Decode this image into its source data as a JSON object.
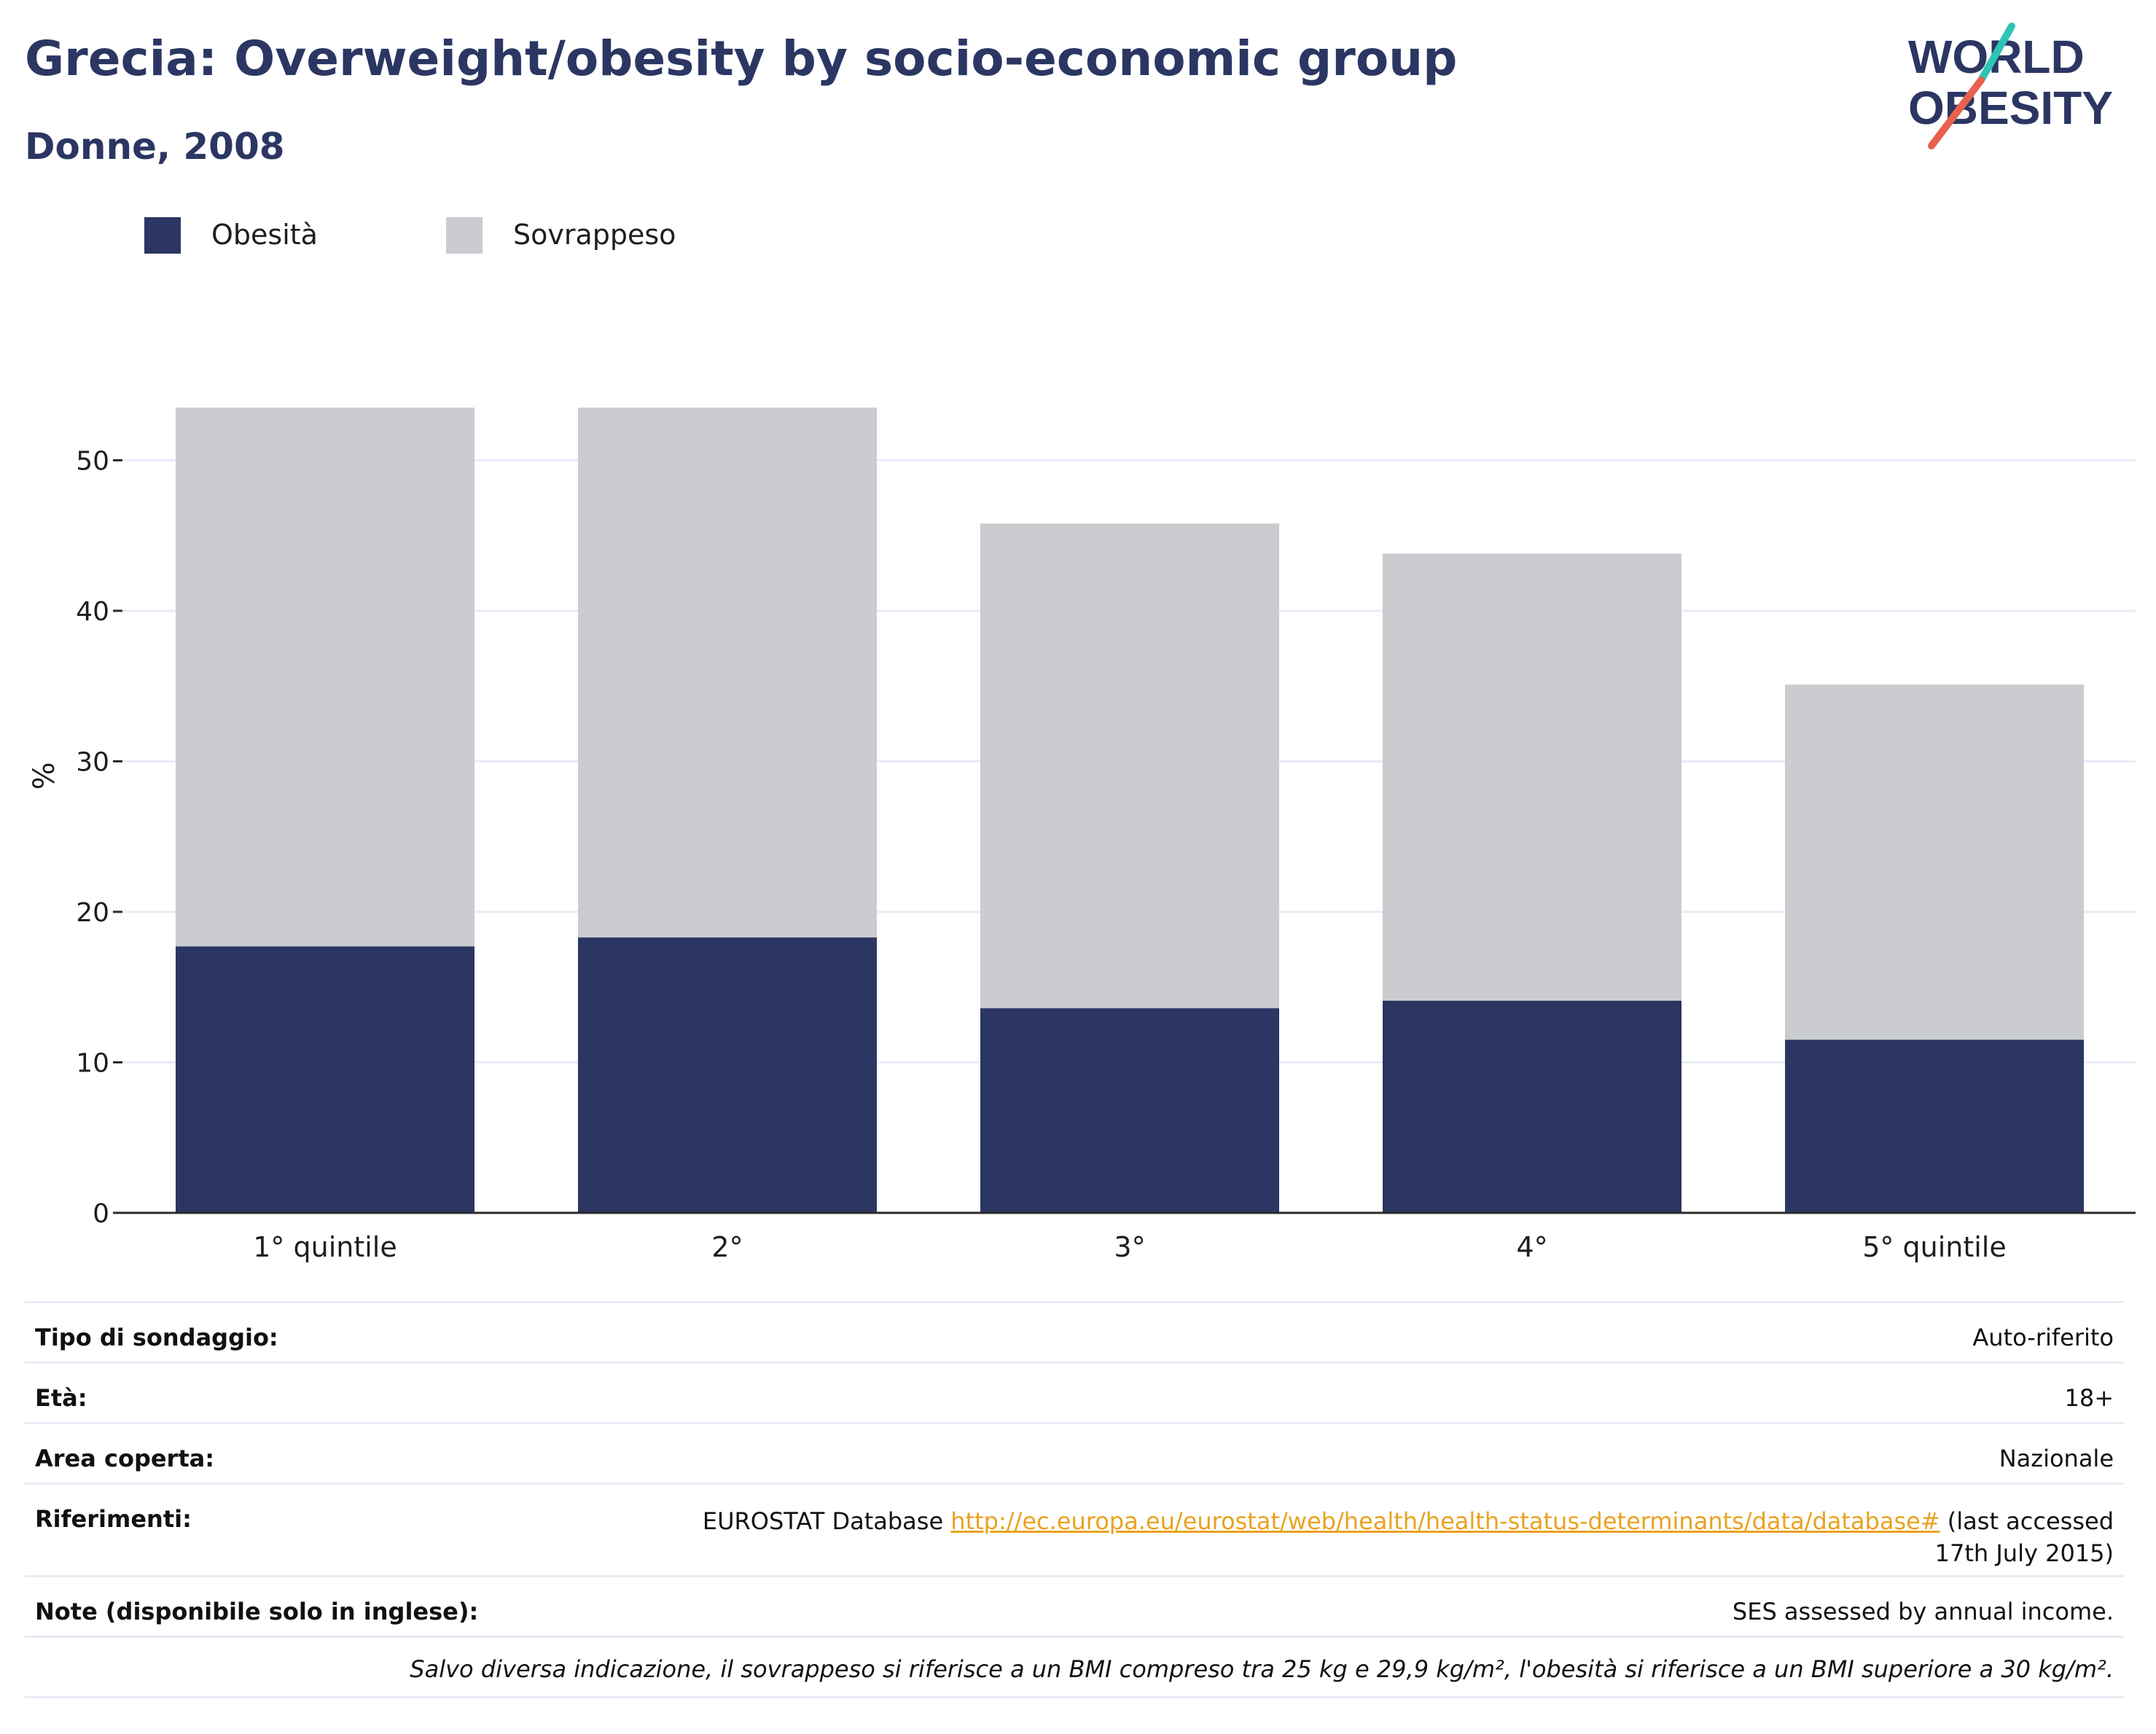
{
  "header": {
    "title": "Grecia: Overweight/obesity by socio-economic group",
    "subtitle": "Donne, 2008"
  },
  "logo": {
    "line1": "WORLD",
    "line2": "OBESITY"
  },
  "colors": {
    "obesity": "#2b3663",
    "overweight": "#cacccf",
    "accent_teal": "#2ec4b6",
    "accent_red": "#e8614f",
    "grid": "#e8ebf5",
    "axis": "#2b2b2b"
  },
  "legend": [
    {
      "label": "Obesità",
      "color": "#2b3663"
    },
    {
      "label": "Sovrappeso",
      "color": "#cacccf"
    }
  ],
  "chart_data": {
    "type": "bar",
    "stacked": true,
    "categories": [
      "1° quintile",
      "2°",
      "3°",
      "4°",
      "5° quintile"
    ],
    "series": [
      {
        "name": "Obesità",
        "values": [
          17.7,
          18.3,
          13.6,
          14.1,
          11.5
        ]
      },
      {
        "name": "Sovrappeso",
        "values": [
          35.8,
          35.2,
          32.2,
          29.7,
          23.6
        ]
      }
    ],
    "ylabel": "%",
    "xlabel": "",
    "ylim": [
      0,
      60
    ],
    "yticks": [
      0,
      10,
      20,
      30,
      40,
      50
    ],
    "grid": true,
    "legend_position": "top-left"
  },
  "info": {
    "rows": [
      {
        "label": "Tipo di sondaggio:",
        "value": "Auto-riferito"
      },
      {
        "label": "Età:",
        "value": "18+"
      },
      {
        "label": "Area coperta:",
        "value": "Nazionale"
      }
    ],
    "references": {
      "label": "Riferimenti:",
      "prefix": "EUROSTAT Database ",
      "link": "http://ec.europa.eu/eurostat/web/health/health-status-determinants/data/database#",
      "suffix": " (last accessed 17th July 2015)"
    },
    "notes": {
      "label": "Note (disponibile solo in inglese):",
      "value": "SES assessed by annual income."
    },
    "footnote": "Salvo diversa indicazione, il sovrappeso si riferisce a un BMI compreso tra 25 kg e 29,9 kg/m², l'obesità si riferisce a un BMI superiore a 30 kg/m²."
  }
}
